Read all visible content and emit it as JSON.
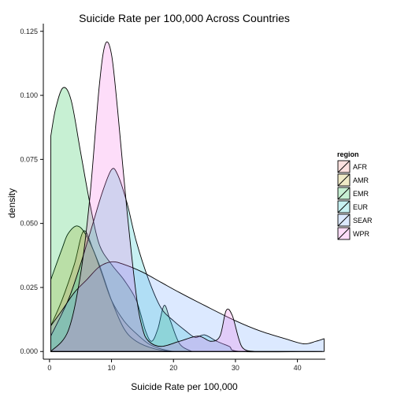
{
  "chart_data": {
    "type": "area",
    "title": "Suicide Rate per 100,000 Across Countries",
    "xlabel": "Suicide Rate per 100,000",
    "ylabel": "density",
    "xlim": [
      -1,
      44.5
    ],
    "ylim": [
      -0.003,
      0.128
    ],
    "x_ticks": [
      0,
      10,
      20,
      30,
      40
    ],
    "y_ticks": [
      0.0,
      0.025,
      0.05,
      0.075,
      0.1,
      0.125
    ],
    "y_tick_labels": [
      "0.000",
      "0.025",
      "0.050",
      "0.075",
      "0.100",
      "0.125"
    ],
    "grid": false,
    "legend": {
      "title": "region",
      "position": "right"
    },
    "series": [
      {
        "name": "AFR",
        "color": "#F8766D",
        "points": [
          [
            0.2,
            0.01
          ],
          [
            2,
            0.02
          ],
          [
            4,
            0.034
          ],
          [
            5.5,
            0.047
          ],
          [
            7,
            0.04
          ],
          [
            8.5,
            0.03
          ],
          [
            10,
            0.02
          ],
          [
            12,
            0.012
          ],
          [
            14,
            0.007
          ],
          [
            16,
            0.003
          ],
          [
            18,
            0.001
          ],
          [
            20,
            0.0
          ]
        ]
      },
      {
        "name": "AMR",
        "color": "#B79F00",
        "points": [
          [
            0.2,
            0.028
          ],
          [
            2,
            0.04
          ],
          [
            3,
            0.046
          ],
          [
            4.5,
            0.049
          ],
          [
            6,
            0.045
          ],
          [
            8,
            0.034
          ],
          [
            10,
            0.02
          ],
          [
            12,
            0.009
          ],
          [
            14,
            0.004
          ],
          [
            17,
            0.001
          ],
          [
            20,
            0.0
          ]
        ]
      },
      {
        "name": "EMR",
        "color": "#00BA38",
        "points": [
          [
            0.2,
            0.084
          ],
          [
            1,
            0.095
          ],
          [
            2.2,
            0.103
          ],
          [
            3.5,
            0.098
          ],
          [
            5,
            0.078
          ],
          [
            6.5,
            0.058
          ],
          [
            8,
            0.042
          ],
          [
            10,
            0.034
          ],
          [
            12,
            0.028
          ],
          [
            14,
            0.02
          ],
          [
            15.5,
            0.008
          ],
          [
            16.5,
            0.004
          ],
          [
            17.5,
            0.009
          ],
          [
            18.5,
            0.018
          ],
          [
            19.5,
            0.012
          ],
          [
            21,
            0.003
          ],
          [
            23,
            0.0
          ]
        ]
      },
      {
        "name": "EUR",
        "color": "#00BFC4",
        "points": [
          [
            0.2,
            0.006
          ],
          [
            3,
            0.02
          ],
          [
            5,
            0.034
          ],
          [
            7,
            0.05
          ],
          [
            8.5,
            0.062
          ],
          [
            10,
            0.071
          ],
          [
            11,
            0.069
          ],
          [
            12.5,
            0.058
          ],
          [
            14,
            0.043
          ],
          [
            16,
            0.028
          ],
          [
            18,
            0.017
          ],
          [
            20,
            0.012
          ],
          [
            22,
            0.008
          ],
          [
            23.5,
            0.0055
          ],
          [
            25,
            0.0065
          ],
          [
            27,
            0.004
          ],
          [
            29,
            0.002
          ],
          [
            31,
            0.0
          ],
          [
            44,
            0.0
          ]
        ]
      },
      {
        "name": "SEAR",
        "color": "#619CFF",
        "points": [
          [
            0.2,
            0.01
          ],
          [
            2,
            0.016
          ],
          [
            4,
            0.023
          ],
          [
            6,
            0.028
          ],
          [
            8,
            0.033
          ],
          [
            10,
            0.035
          ],
          [
            12,
            0.034
          ],
          [
            15,
            0.031
          ],
          [
            18,
            0.027
          ],
          [
            21,
            0.023
          ],
          [
            25,
            0.018
          ],
          [
            30,
            0.012
          ],
          [
            34,
            0.008
          ],
          [
            38,
            0.005
          ],
          [
            41,
            0.003
          ],
          [
            43,
            0.004
          ],
          [
            44.3,
            0.005
          ]
        ]
      },
      {
        "name": "WPR",
        "color": "#F564E3",
        "points": [
          [
            0.2,
            0.0
          ],
          [
            3,
            0.008
          ],
          [
            5,
            0.03
          ],
          [
            6.5,
            0.06
          ],
          [
            8,
            0.103
          ],
          [
            9,
            0.12
          ],
          [
            10,
            0.116
          ],
          [
            11,
            0.094
          ],
          [
            12.5,
            0.055
          ],
          [
            14,
            0.022
          ],
          [
            15,
            0.009
          ],
          [
            16,
            0.004
          ],
          [
            18,
            0.002
          ],
          [
            21,
            0.004
          ],
          [
            24,
            0.006
          ],
          [
            26,
            0.004
          ],
          [
            27.5,
            0.006
          ],
          [
            28.5,
            0.016
          ],
          [
            29.5,
            0.014
          ],
          [
            31,
            0.002
          ],
          [
            33,
            0.0
          ]
        ]
      }
    ]
  }
}
